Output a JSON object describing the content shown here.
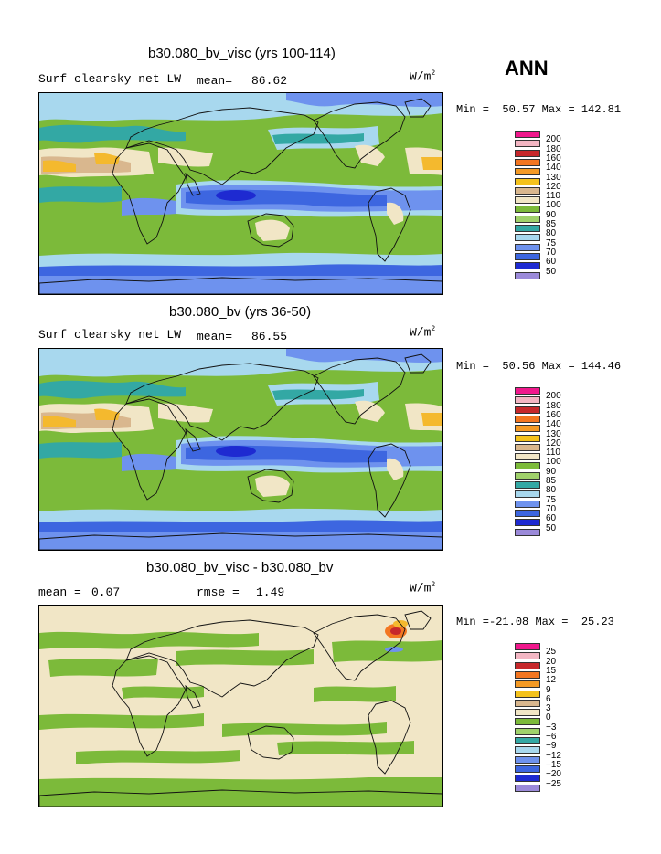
{
  "header": {
    "season": "ANN"
  },
  "colors": {
    "ocean_tropic": "#3d66e0",
    "ocean_deep": "#1e2ad1",
    "ocean_mid": "#6e92ee",
    "light_blue": "#a8d8ee",
    "teal": "#33a8a4",
    "green": "#7cba3a",
    "light_green": "#a0d16b",
    "beige": "#f1e6c6",
    "tan": "#d9b78e",
    "gold": "#f4b92e",
    "orange": "#f37621",
    "red": "#c6282b",
    "pink": "#f3b6c3",
    "magenta": "#f0188c",
    "purple": "#9b8ad9"
  },
  "chart_data": [
    {
      "type": "heatmap",
      "title": "b30.080_bv_visc (yrs 100-114)",
      "variable": "Surf clearsky net LW",
      "stat_label": "mean=",
      "stat_value": "86.62",
      "units": "W/m",
      "units_sup": "2",
      "min_label": "Min =",
      "min_value": "50.57",
      "max_label": "Max =",
      "max_value": "142.81",
      "levels": [
        "200",
        "180",
        "160",
        "140",
        "130",
        "120",
        "110",
        "100",
        "90",
        "85",
        "80",
        "75",
        "70",
        "60",
        "50"
      ],
      "level_colors": [
        "#f0188c",
        "#f3b6c3",
        "#c6282b",
        "#f37621",
        "#f49a25",
        "#f4c21c",
        "#d9b78e",
        "#f1e6c6",
        "#7cba3a",
        "#a0d16b",
        "#33a8a4",
        "#a8d8ee",
        "#6e92ee",
        "#3d66e0",
        "#1e2ad1",
        "#9b8ad9"
      ]
    },
    {
      "type": "heatmap",
      "title": "b30.080_bv (yrs 36-50)",
      "variable": "Surf clearsky net LW",
      "stat_label": "mean=",
      "stat_value": "86.55",
      "units": "W/m",
      "units_sup": "2",
      "min_label": "Min =",
      "min_value": "50.56",
      "max_label": "Max =",
      "max_value": "144.46",
      "levels": [
        "200",
        "180",
        "160",
        "140",
        "130",
        "120",
        "110",
        "100",
        "90",
        "85",
        "80",
        "75",
        "70",
        "60",
        "50"
      ],
      "level_colors": [
        "#f0188c",
        "#f3b6c3",
        "#c6282b",
        "#f37621",
        "#f49a25",
        "#f4c21c",
        "#d9b78e",
        "#f1e6c6",
        "#7cba3a",
        "#a0d16b",
        "#33a8a4",
        "#a8d8ee",
        "#6e92ee",
        "#3d66e0",
        "#1e2ad1",
        "#9b8ad9"
      ]
    },
    {
      "type": "heatmap",
      "title": "b30.080_bv_visc - b30.080_bv",
      "mean_label": "mean =",
      "mean_value": "0.07",
      "rmse_label": "rmse =",
      "rmse_value": "1.49",
      "units": "W/m",
      "units_sup": "2",
      "min_label": "Min =",
      "min_value": "-21.08",
      "max_label": "Max =",
      "max_value": "25.23",
      "levels": [
        "25",
        "20",
        "15",
        "12",
        "9",
        "6",
        "3",
        "0",
        "-3",
        "-6",
        "-9",
        "-12",
        "-15",
        "-20",
        "-25"
      ],
      "level_colors": [
        "#f0188c",
        "#f3b6c3",
        "#c6282b",
        "#f37621",
        "#f49a25",
        "#f4c21c",
        "#d9b78e",
        "#f1e6c6",
        "#7cba3a",
        "#a0d16b",
        "#33a8a4",
        "#a8d8ee",
        "#6e92ee",
        "#3d66e0",
        "#1e2ad1",
        "#9b8ad9"
      ]
    }
  ]
}
